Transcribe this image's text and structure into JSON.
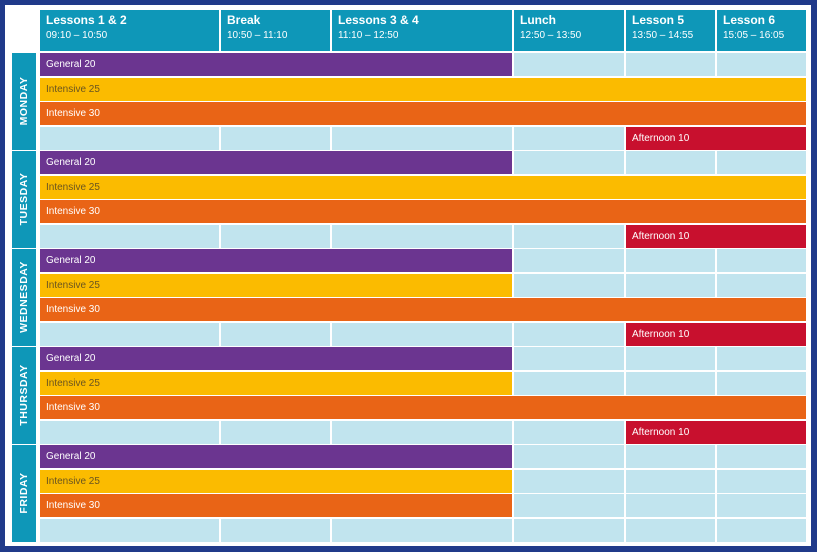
{
  "headers": [
    {
      "title": "Lessons 1 & 2",
      "time": "09:10 – 10:50"
    },
    {
      "title": "Break",
      "time": "10:50 – 11:10"
    },
    {
      "title": "Lessons 3 & 4",
      "time": "11:10 – 12:50"
    },
    {
      "title": "Lunch",
      "time": "12:50 – 13:50"
    },
    {
      "title": "Lesson 5",
      "time": "13:50 – 14:55"
    },
    {
      "title": "Lesson 6",
      "time": "15:05 – 16:05"
    }
  ],
  "days": [
    {
      "name": "MONDAY",
      "bars": [
        {
          "label": "General 20",
          "color": "purple",
          "span": "3"
        },
        {
          "label": "Intensive 25",
          "color": "yellow",
          "span": "6"
        },
        {
          "label": "Intensive 30",
          "color": "orange",
          "span": "6"
        },
        {
          "label": "Afternoon 10",
          "color": "red",
          "span": "afternoon"
        }
      ]
    },
    {
      "name": "TUESDAY",
      "bars": [
        {
          "label": "General 20",
          "color": "purple",
          "span": "3"
        },
        {
          "label": "Intensive 25",
          "color": "yellow",
          "span": "6"
        },
        {
          "label": "Intensive 30",
          "color": "orange",
          "span": "6"
        },
        {
          "label": "Afternoon 10",
          "color": "red",
          "span": "afternoon"
        }
      ]
    },
    {
      "name": "WEDNESDAY",
      "bars": [
        {
          "label": "General 20",
          "color": "purple",
          "span": "3"
        },
        {
          "label": "Intensive 25",
          "color": "yellow",
          "span": "3"
        },
        {
          "label": "Intensive 30",
          "color": "orange",
          "span": "6"
        },
        {
          "label": "Afternoon 10",
          "color": "red",
          "span": "afternoon"
        }
      ]
    },
    {
      "name": "THURSDAY",
      "bars": [
        {
          "label": "General 20",
          "color": "purple",
          "span": "3"
        },
        {
          "label": "Intensive 25",
          "color": "yellow",
          "span": "3"
        },
        {
          "label": "Intensive 30",
          "color": "orange",
          "span": "6"
        },
        {
          "label": "Afternoon 10",
          "color": "red",
          "span": "afternoon"
        }
      ]
    },
    {
      "name": "FRIDAY",
      "bars": [
        {
          "label": "General 20",
          "color": "purple",
          "span": "3"
        },
        {
          "label": "Intensive 25",
          "color": "yellow",
          "span": "3"
        },
        {
          "label": "Intensive 30",
          "color": "orange",
          "span": "3"
        }
      ]
    }
  ],
  "colors": {
    "border": "#203a8a",
    "header": "#0e97b8",
    "empty_cell": "#c1e4ee",
    "purple": "#6b3590",
    "yellow": "#fbbb00",
    "orange": "#e96416",
    "red": "#c8102e"
  }
}
